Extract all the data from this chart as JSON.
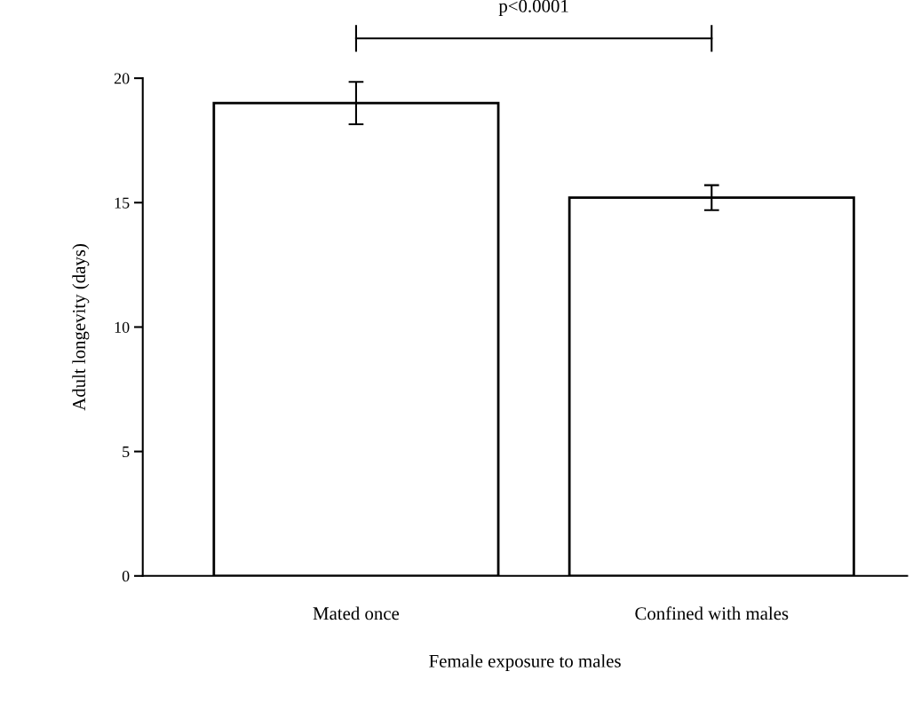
{
  "chart_data": {
    "type": "bar",
    "xlabel": "Female exposure to males",
    "ylabel": "Adult longevity (days)",
    "categories": [
      "Mated once",
      "Confined with males"
    ],
    "values": [
      19.0,
      15.2
    ],
    "errors": [
      0.85,
      0.5
    ],
    "color": "#ffffff",
    "ylim": [
      0,
      20
    ],
    "yticks": [
      0,
      5,
      10,
      15,
      20
    ],
    "grid": false,
    "legend": false,
    "annotations": [
      "p<0.0001"
    ]
  }
}
